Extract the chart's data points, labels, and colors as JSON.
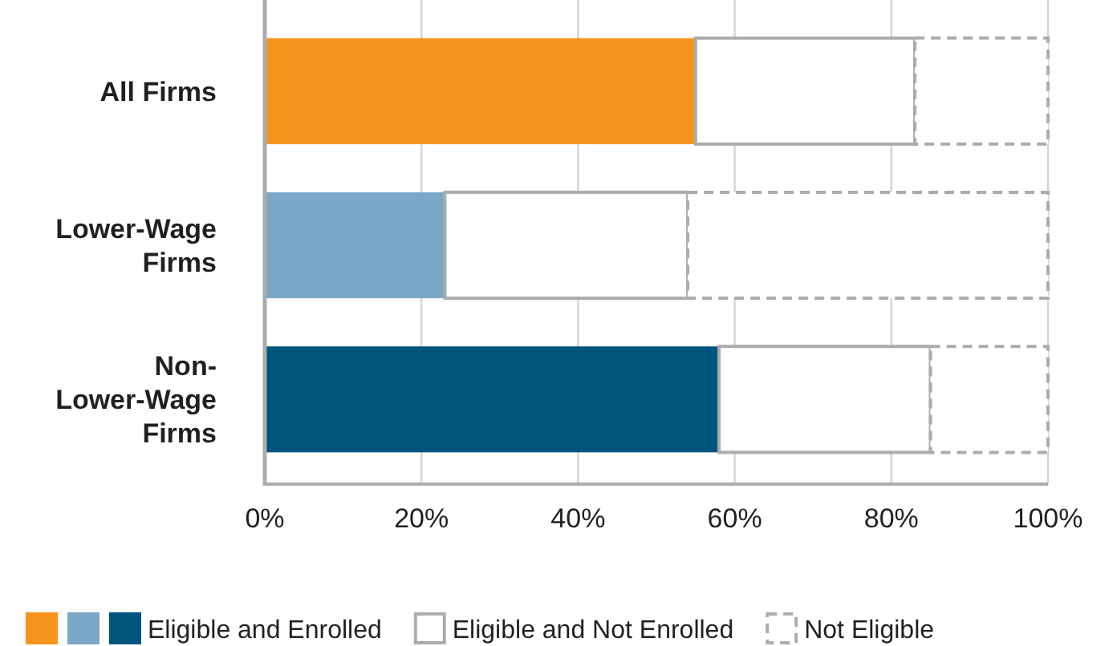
{
  "chart_data": {
    "type": "bar",
    "orientation": "horizontal",
    "stacked": true,
    "categories": [
      "All Firms",
      "Lower-Wage Firms",
      "Non-Lower-Wage Firms"
    ],
    "series": [
      {
        "name": "Eligible and Enrolled",
        "colors": [
          "#f7941d",
          "#7ba7c7",
          "#00557f"
        ],
        "values": [
          55,
          23,
          58
        ]
      },
      {
        "name": "Eligible and Not Enrolled",
        "color": "#ffffff",
        "line_style": "solid",
        "values": [
          28,
          31,
          27
        ]
      },
      {
        "name": "Not Eligible",
        "color": "#ffffff",
        "line_style": "dashed",
        "values": [
          17,
          46,
          15
        ]
      }
    ],
    "xlim": [
      0,
      100
    ],
    "xticks": [
      {
        "value": 0,
        "label": "0%"
      },
      {
        "value": 20,
        "label": "20%"
      },
      {
        "value": 40,
        "label": "40%"
      },
      {
        "value": 60,
        "label": "60%"
      },
      {
        "value": 80,
        "label": "80%"
      },
      {
        "value": 100,
        "label": "100%"
      }
    ],
    "grid": "x",
    "legend": "bottom"
  }
}
